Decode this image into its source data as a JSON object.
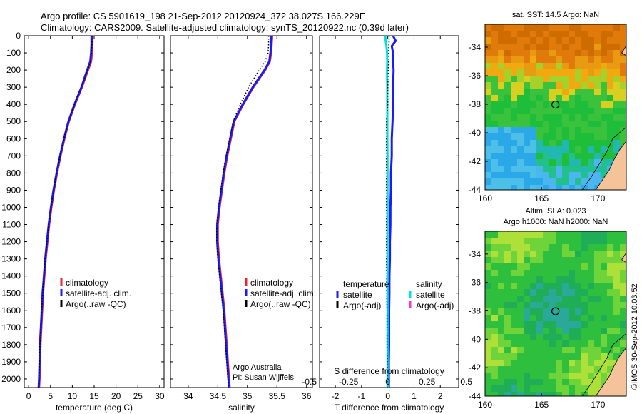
{
  "header": {
    "line1": "Argo profile: CS 5901619_198 21-Sep-2012 20120924_372 38.027S 166.229E",
    "line2": "Climatology: CARS2009. Satellite-adjusted climatology: synTS_20120922.nc (0.39d later)"
  },
  "colors": {
    "climatology": "#e8262b",
    "satellite": "#1a1aff",
    "argo": "#000000",
    "sal_sat": "#00e0e0",
    "sal_argo": "#ff33cc"
  },
  "depth_ticks": [
    "0",
    "100",
    "200",
    "300",
    "400",
    "500",
    "600",
    "700",
    "800",
    "900",
    "1000",
    "1100",
    "1200",
    "1300",
    "1400",
    "1500",
    "1600",
    "1700",
    "1800",
    "1900",
    "2000"
  ],
  "chart_data": [
    {
      "type": "line",
      "id": "temperature",
      "xlabel": "temperature (deg C)",
      "xlim": [
        -1,
        31
      ],
      "ylim": [
        2050,
        0
      ],
      "x_ticks": [
        "0",
        "5",
        "10",
        "15",
        "20",
        "25",
        "30"
      ],
      "x_tick_values": [
        0,
        5,
        10,
        15,
        20,
        25,
        30
      ],
      "legend": [
        "climatology",
        "satellite-adj. clim.",
        "Argo(..raw -QC)"
      ],
      "depth": [
        0,
        50,
        100,
        150,
        200,
        300,
        400,
        500,
        600,
        700,
        800,
        900,
        1000,
        1100,
        1200,
        1300,
        1400,
        1500,
        1600,
        1700,
        1800,
        1900,
        2000,
        2050
      ],
      "series": [
        {
          "name": "climatology",
          "color": "climatology",
          "values": [
            14.6,
            14.6,
            14.5,
            14.3,
            13.6,
            12.2,
            10.6,
            9.2,
            8.2,
            7.3,
            6.5,
            5.8,
            5.2,
            4.7,
            4.3,
            3.9,
            3.6,
            3.3,
            3.1,
            2.9,
            2.7,
            2.6,
            2.5,
            2.4
          ]
        },
        {
          "name": "satellite-adj. clim.",
          "color": "satellite",
          "values": [
            14.4,
            14.4,
            14.3,
            14.1,
            13.4,
            12.1,
            10.5,
            9.1,
            8.1,
            7.2,
            6.4,
            5.7,
            5.1,
            4.6,
            4.2,
            3.8,
            3.5,
            3.2,
            3.0,
            2.8,
            2.6,
            2.5,
            2.4,
            2.3
          ]
        },
        {
          "name": "Argo(..raw -QC)",
          "color": "argo",
          "values": [
            14.5,
            14.5,
            14.4,
            14.2,
            13.5,
            12.1,
            10.5,
            9.1,
            8.1,
            7.2,
            6.4,
            5.7,
            5.1,
            4.6,
            4.2,
            3.8,
            3.5,
            3.2,
            3.0,
            2.8,
            2.6,
            2.5,
            2.4,
            2.3
          ]
        }
      ]
    },
    {
      "type": "line",
      "id": "salinity",
      "xlabel": "salinity",
      "xlim": [
        33.7,
        36.1
      ],
      "ylim": [
        2050,
        0
      ],
      "x_ticks": [
        "34",
        "34.5",
        "35",
        "35.5",
        "36"
      ],
      "x_tick_values": [
        34,
        34.5,
        35,
        35.5,
        36
      ],
      "legend": [
        "climatology",
        "satellite-adj. clim.",
        "Argo(..raw -QC)"
      ],
      "depth": [
        0,
        50,
        100,
        150,
        200,
        300,
        400,
        500,
        600,
        700,
        800,
        900,
        1000,
        1100,
        1200,
        1300,
        1400,
        1500,
        1600,
        1700,
        1800,
        1900,
        2000,
        2050
      ],
      "series": [
        {
          "name": "climatology",
          "color": "climatology",
          "values": [
            35.42,
            35.41,
            35.4,
            35.38,
            35.3,
            35.1,
            34.93,
            34.78,
            34.72,
            34.66,
            34.61,
            34.57,
            34.53,
            34.5,
            34.5,
            34.52,
            34.55,
            34.58,
            34.61,
            34.63,
            34.65,
            34.67,
            34.69,
            34.7
          ]
        },
        {
          "name": "satellite-adj. clim.",
          "color": "satellite",
          "values": [
            35.4,
            35.4,
            35.39,
            35.37,
            35.29,
            35.09,
            34.92,
            34.77,
            34.71,
            34.65,
            34.6,
            34.56,
            34.52,
            34.49,
            34.49,
            34.51,
            34.54,
            34.57,
            34.6,
            34.62,
            34.64,
            34.66,
            34.68,
            34.69
          ]
        },
        {
          "name": "Argo(..raw -QC)",
          "color": "argo",
          "values": [
            35.36,
            35.36,
            35.35,
            35.3,
            35.2,
            35.02,
            34.88,
            34.76,
            34.7,
            34.64,
            34.59,
            34.55,
            34.51,
            34.48,
            34.48,
            34.5,
            34.53,
            34.56,
            34.59,
            34.61,
            34.63,
            34.65,
            34.67,
            34.68
          ]
        }
      ],
      "credit_line1": "Argo Australia",
      "credit_line2": "PI: Susan Wijffels"
    },
    {
      "type": "line",
      "id": "difference",
      "xlabel": "T difference from climatology",
      "xlabel_top": "S difference from climatology",
      "xlim": [
        -2.6,
        2.7
      ],
      "ylim": [
        2050,
        0
      ],
      "x_ticks": [
        "-2",
        "-1",
        "0",
        "1",
        "2"
      ],
      "x_tick_values": [
        -2,
        -1,
        0,
        1,
        2
      ],
      "s_ticks": [
        "-0.5",
        "-0.25",
        "0",
        "0.25",
        "0.5"
      ],
      "s_tick_values": [
        -0.5,
        -0.25,
        0,
        0.25,
        0.5
      ],
      "legend_temp_title": "temperature",
      "legend_sal_title": "salinity",
      "legend_temp": [
        "satellite",
        "Argo(-adj)"
      ],
      "legend_sal": [
        "satellite",
        "Argo(-adj)"
      ],
      "depth": [
        0,
        30,
        60,
        100,
        150,
        200,
        300,
        400,
        500,
        600,
        700,
        800,
        900,
        1000,
        1100,
        1200,
        1300,
        1400,
        1500,
        1600,
        1700,
        1800,
        1900,
        2000,
        2050
      ],
      "series": [
        {
          "name": "temperature satellite",
          "color": "satellite",
          "values": [
            0.2,
            0.3,
            0.15,
            0.2,
            0.2,
            0.22,
            0.2,
            0.2,
            0.18,
            0.15,
            0.15,
            0.12,
            0.12,
            0.1,
            0.1,
            0.08,
            0.08,
            0.06,
            0.06,
            0.05,
            0.05,
            0.05,
            0.04,
            0.04,
            0.04
          ]
        },
        {
          "name": "salinity satellite",
          "color": "sal_sat",
          "values": [
            -0.1,
            -0.08,
            -0.05,
            -0.03,
            -0.02,
            -0.03,
            -0.02,
            -0.02,
            -0.015,
            -0.015,
            -0.01,
            -0.01,
            -0.01,
            -0.01,
            -0.01,
            -0.01,
            -0.01,
            -0.01,
            -0.01,
            -0.01,
            -0.01,
            -0.01,
            -0.01,
            -0.01,
            -0.01
          ]
        },
        {
          "name": "temperature Argo(-adj)",
          "color": "argo",
          "values": [
            0.05,
            0.05,
            0.04,
            0.03,
            0.03,
            0.02,
            0.0,
            0.0,
            -0.05,
            -0.05,
            -0.05,
            -0.05,
            -0.05,
            -0.05,
            -0.05,
            -0.05,
            -0.05,
            -0.04,
            -0.04,
            -0.03,
            -0.03,
            -0.03,
            -0.02,
            -0.02,
            -0.02
          ]
        }
      ]
    }
  ],
  "maps": [
    {
      "id": "sst-map",
      "title": "sat. SST: 14.5 Argo: NaN",
      "x_ticks": [
        "160",
        "165",
        "170"
      ],
      "y_ticks": [
        "-34",
        "-36",
        "-38",
        "-40",
        "-42",
        "-44"
      ],
      "lon_range": [
        160,
        172.5
      ],
      "lat_range": [
        -44,
        -32.4
      ],
      "marker": {
        "lon": 166.229,
        "lat": -38.027
      }
    },
    {
      "id": "sla-map",
      "title_line1": "Altim. SLA: 0.023",
      "title_line2": "Argo h1000: NaN h2000: NaN",
      "x_ticks": [
        "160",
        "165",
        "170"
      ],
      "y_ticks": [
        "-34",
        "-36",
        "-38",
        "-40",
        "-42",
        "-44"
      ],
      "lon_range": [
        160,
        172.5
      ],
      "lat_range": [
        -44,
        -32.4
      ],
      "marker": {
        "lon": 166.229,
        "lat": -38.027
      }
    }
  ],
  "stamp": "©IMOS 30-Sep-2012 10:03:52"
}
